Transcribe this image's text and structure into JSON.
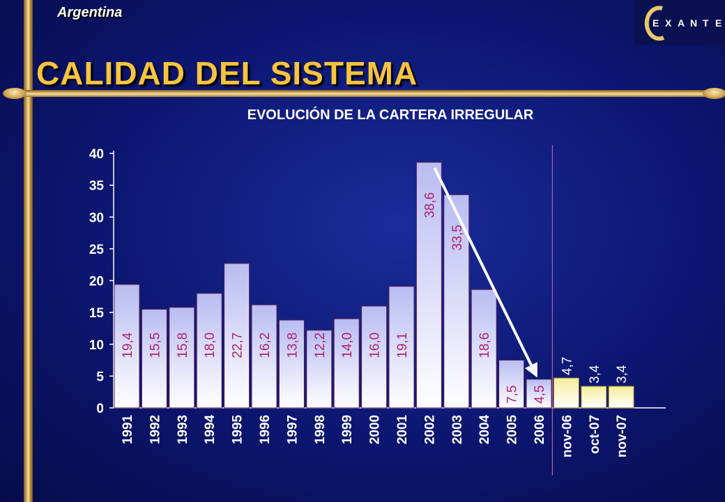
{
  "header": {
    "country": "Argentina",
    "title": "CALIDAD DEL SISTEMA",
    "logo_text": "EXANTE",
    "logo_letters": [
      "E",
      "X",
      "A",
      "N",
      "T",
      "E"
    ]
  },
  "colors": {
    "gold": "#f8c440",
    "bar_historic_top": "#b8bcf2",
    "bar_recent_top": "#f6ec9a",
    "value_label": "#b0206c",
    "axis": "#ffffff"
  },
  "chart_data": {
    "type": "bar",
    "title": "EVOLUCIÓN DE LA CARTERA IRREGULAR",
    "categories": [
      "1991",
      "1992",
      "1993",
      "1994",
      "1995",
      "1996",
      "1997",
      "1998",
      "1999",
      "2000",
      "2001",
      "2002",
      "2003",
      "2004",
      "2005",
      "2006",
      "nov-06",
      "oct-07",
      "nov-07"
    ],
    "values": [
      19.4,
      15.5,
      15.8,
      18.0,
      22.7,
      16.2,
      13.8,
      12.2,
      14.0,
      16.0,
      19.1,
      38.6,
      33.5,
      18.6,
      7.5,
      4.5,
      4.7,
      3.4,
      3.4
    ],
    "value_labels": [
      "19,4",
      "15,5",
      "15,8",
      "18,0",
      "22,7",
      "16,2",
      "13,8",
      "12,2",
      "14,0",
      "16,0",
      "19,1",
      "38,6",
      "33,5",
      "18,6",
      "7,5",
      "4,5",
      "4,7",
      "3,4",
      "3,4"
    ],
    "ylim": [
      0,
      40
    ],
    "yticks": [
      0,
      5,
      10,
      15,
      20,
      25,
      30,
      35,
      40
    ],
    "xlabel": "",
    "ylabel": "",
    "separator_after": "2006",
    "trend_arrow": {
      "from": "2002",
      "to": "2006"
    }
  }
}
